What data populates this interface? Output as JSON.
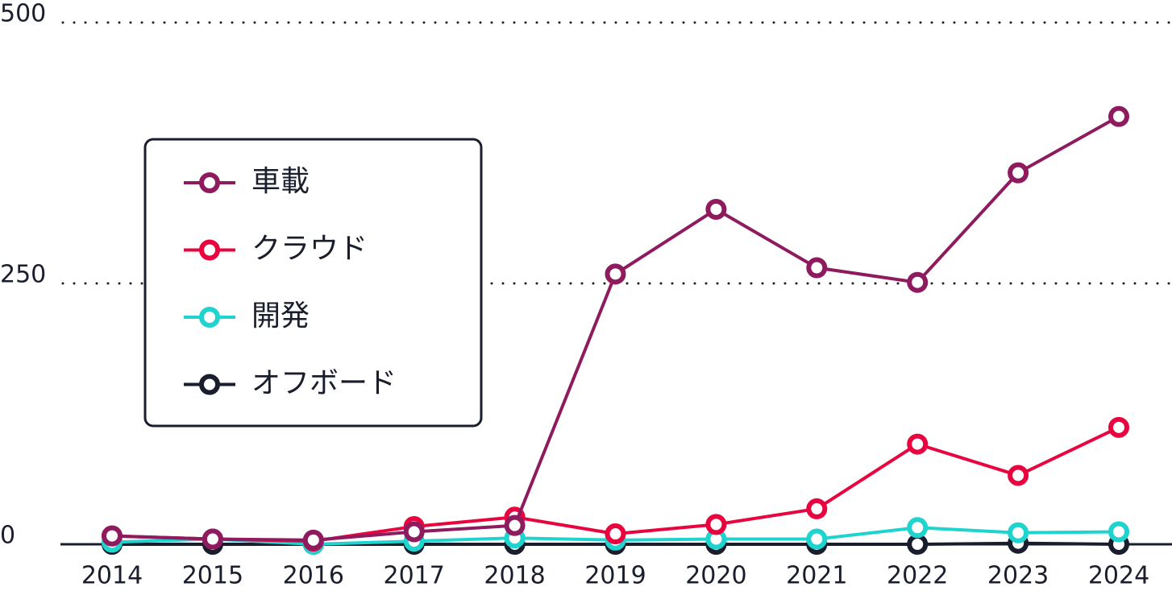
{
  "chart_data": {
    "type": "line",
    "x": [
      "2014",
      "2015",
      "2016",
      "2017",
      "2018",
      "2019",
      "2020",
      "2021",
      "2022",
      "2023",
      "2024"
    ],
    "series": [
      {
        "name": "車載",
        "color": "#8e1b5e",
        "values": [
          8,
          5,
          4,
          12,
          18,
          259,
          321,
          265,
          251,
          356,
          410
        ]
      },
      {
        "name": "クラウド",
        "color": "#e8053f",
        "values": [
          8,
          5,
          3,
          17,
          26,
          10,
          19,
          34,
          96,
          66,
          112
        ]
      },
      {
        "name": "開発",
        "color": "#1fd3cf",
        "values": [
          2,
          5,
          0,
          3,
          6,
          4,
          5,
          5,
          16,
          11,
          12
        ]
      },
      {
        "name": "オフボード",
        "color": "#1a1d2b",
        "values": [
          0,
          0,
          0,
          0,
          0,
          0,
          0,
          0,
          0,
          1,
          0
        ]
      }
    ],
    "ylim": [
      0,
      500
    ],
    "yticks": [
      0,
      250,
      500
    ],
    "grid": true,
    "legend": "upper left"
  }
}
